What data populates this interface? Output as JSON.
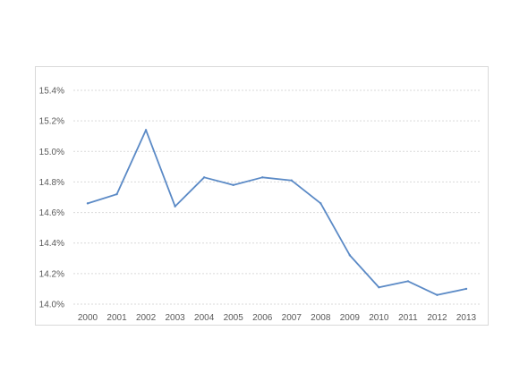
{
  "chart_data": {
    "type": "line",
    "title": "",
    "xlabel": "",
    "ylabel": "",
    "x": [
      "2000",
      "2001",
      "2002",
      "2003",
      "2004",
      "2005",
      "2006",
      "2007",
      "2008",
      "2009",
      "2010",
      "2011",
      "2012",
      "2013"
    ],
    "series": [
      {
        "values": [
          14.66,
          14.72,
          15.14,
          14.64,
          14.83,
          14.78,
          14.83,
          14.81,
          14.66,
          14.32,
          14.11,
          14.15,
          14.06,
          14.1
        ],
        "color": "#5b8ac6"
      }
    ],
    "ylim": [
      14.0,
      15.4
    ],
    "yticks": [
      {
        "value": 14.0,
        "label": "14.0%"
      },
      {
        "value": 14.2,
        "label": "14.2%"
      },
      {
        "value": 14.4,
        "label": "14.4%"
      },
      {
        "value": 14.6,
        "label": "14.6%"
      },
      {
        "value": 14.8,
        "label": "14.8%"
      },
      {
        "value": 15.0,
        "label": "15.0%"
      },
      {
        "value": 15.2,
        "label": "15.2%"
      },
      {
        "value": 15.4,
        "label": "15.4%"
      }
    ],
    "grid": true,
    "legend": "none"
  }
}
